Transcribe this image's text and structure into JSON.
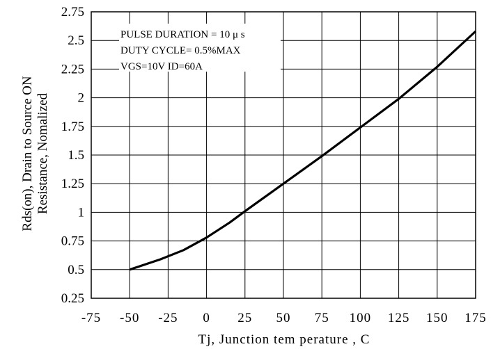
{
  "chart_data": {
    "type": "line",
    "title": "",
    "xlabel": "Tj, Junction tem perature , C",
    "ylabel_lines": [
      "Rds(on), Drain to Source  ON",
      "Resistance, Nomalized"
    ],
    "xlim": [
      -75,
      175
    ],
    "ylim": [
      0.25,
      2.75
    ],
    "x_ticks": [
      -75,
      -50,
      -25,
      0,
      25,
      50,
      75,
      100,
      125,
      150,
      175
    ],
    "x_tick_labels": [
      "-75",
      "-50",
      "-25",
      "0",
      "25",
      "50",
      "75",
      "100",
      "125",
      "150",
      "175"
    ],
    "y_ticks": [
      0.25,
      0.5,
      0.75,
      1,
      1.25,
      1.5,
      1.75,
      2,
      2.25,
      2.5,
      2.75
    ],
    "y_tick_labels": [
      "0.25",
      "0.5",
      "0.75",
      "1",
      "1.25",
      "1.5",
      "1.75",
      "2",
      "2.25",
      "2.5",
      "2.75"
    ],
    "grid": true,
    "legend": "none",
    "annotation": [
      "PULSE    DURATION = 10 μ s",
      "DUTY   CYCLE= 0.5%MAX",
      "VGS=10V   ID=60A"
    ],
    "colors": {
      "line": "#000000",
      "grid": "#000000",
      "background": "#ffffff"
    },
    "series": [
      {
        "x": [
          -50,
          -30,
          -15,
          0,
          15,
          25,
          50,
          75,
          100,
          125,
          150,
          175
        ],
        "values": [
          0.5,
          0.59,
          0.67,
          0.78,
          0.91,
          1.01,
          1.25,
          1.49,
          1.74,
          1.99,
          2.27,
          2.58
        ]
      }
    ]
  }
}
